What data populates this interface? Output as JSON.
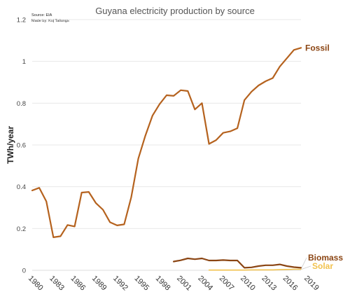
{
  "chart_data": {
    "type": "line",
    "title": "Guyana electricity production by source",
    "source_lines": [
      "Source: EIA",
      "Made by: Koj Tallungs"
    ],
    "ylabel": "TWh/year",
    "xlabel": "",
    "xlim": [
      1980,
      2018
    ],
    "ylim": [
      0,
      1.2
    ],
    "y_ticks": [
      0,
      0.2,
      0.4,
      0.6,
      0.8,
      1,
      1.2
    ],
    "y_tick_labels": [
      "0",
      "0.2",
      "0.4",
      "0.6",
      "0.8",
      "1",
      "1.2"
    ],
    "x_ticks": [
      1980,
      1983,
      1986,
      1989,
      1992,
      1995,
      1998,
      2001,
      2004,
      2007,
      2010,
      2013,
      2016,
      2019
    ],
    "x_tick_labels": [
      "1980",
      "1983",
      "1986",
      "1989",
      "1992",
      "1995",
      "1998",
      "2001",
      "2004",
      "2007",
      "2010",
      "2013",
      "2016",
      "2019"
    ],
    "grid": true,
    "legend": "inline-right",
    "series": [
      {
        "name": "Fossil",
        "color": "#b5621e",
        "x": [
          1980,
          1981,
          1982,
          1983,
          1984,
          1985,
          1986,
          1987,
          1988,
          1989,
          1990,
          1991,
          1992,
          1993,
          1994,
          1995,
          1996,
          1997,
          1998,
          1999,
          2000,
          2001,
          2002,
          2003,
          2004,
          2005,
          2006,
          2007,
          2008,
          2009,
          2010,
          2011,
          2012,
          2013,
          2014,
          2015,
          2016,
          2017,
          2018
        ],
        "values": [
          0.382,
          0.395,
          0.33,
          0.158,
          0.163,
          0.217,
          0.21,
          0.372,
          0.375,
          0.322,
          0.29,
          0.23,
          0.215,
          0.22,
          0.35,
          0.535,
          0.645,
          0.74,
          0.795,
          0.838,
          0.835,
          0.862,
          0.858,
          0.77,
          0.8,
          0.605,
          0.623,
          0.658,
          0.665,
          0.68,
          0.815,
          0.855,
          0.885,
          0.905,
          0.92,
          0.975,
          1.015,
          1.055,
          1.065
        ]
      },
      {
        "name": "Biomass",
        "color": "#8b4513",
        "x": [
          2000,
          2001,
          2002,
          2003,
          2004,
          2005,
          2006,
          2007,
          2008,
          2009,
          2010,
          2011,
          2012,
          2013,
          2014,
          2015,
          2016,
          2017,
          2018
        ],
        "values": [
          0.042,
          0.048,
          0.057,
          0.053,
          0.057,
          0.047,
          0.047,
          0.049,
          0.047,
          0.047,
          0.012,
          0.014,
          0.02,
          0.024,
          0.024,
          0.028,
          0.02,
          0.015,
          0.012
        ]
      },
      {
        "name": "Solar",
        "color": "#f2c24e",
        "x": [
          2005,
          2006,
          2007,
          2008,
          2009,
          2010,
          2011,
          2012,
          2013,
          2014,
          2015,
          2016,
          2017,
          2018
        ],
        "values": [
          0.001,
          0.001,
          0.001,
          0.001,
          0.001,
          0.001,
          0.002,
          0.002,
          0.002,
          0.002,
          0.003,
          0.004,
          0.005,
          0.005
        ]
      }
    ]
  }
}
